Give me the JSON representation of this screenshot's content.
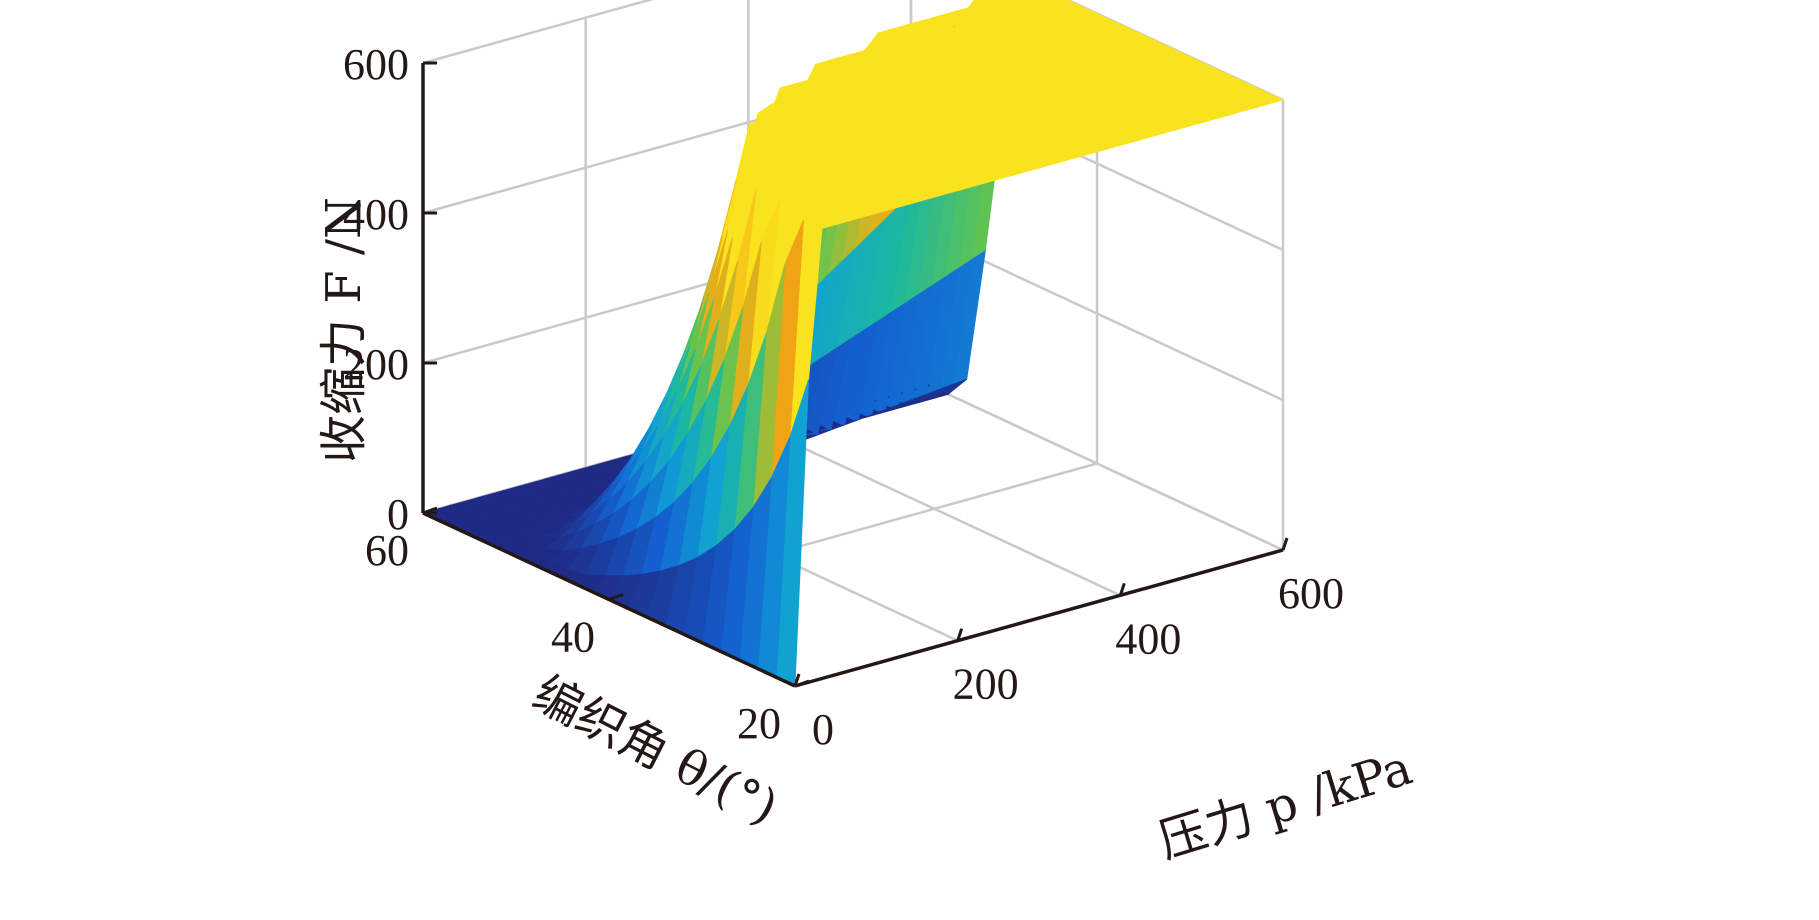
{
  "chart_data": {
    "type": "surface3d",
    "title": "",
    "xlabel": "压力 p /kPa",
    "ylabel": "编织角 θ/(°)",
    "zlabel": "收缩力 F /N",
    "xlim": [
      0,
      600
    ],
    "ylim": [
      20,
      60
    ],
    "zlim": [
      0,
      600
    ],
    "x_ticks": [
      0,
      200,
      400,
      600
    ],
    "y_ticks": [
      20,
      40,
      60
    ],
    "z_ticks": [
      0,
      200,
      400,
      600
    ],
    "grid": true,
    "colormap": "parula",
    "surface_note_points": [
      {
        "p": 0,
        "theta": 20,
        "F": 0
      },
      {
        "p": 0,
        "theta": 60,
        "F": 0
      },
      {
        "p": 600,
        "theta": 20,
        "F": 460
      },
      {
        "p": 600,
        "theta": 60,
        "F": 200
      }
    ]
  },
  "colors": {
    "axis": "#231815",
    "grid": "#c9c9c9",
    "low": "#1f2a84",
    "high": "#f9e21e"
  }
}
